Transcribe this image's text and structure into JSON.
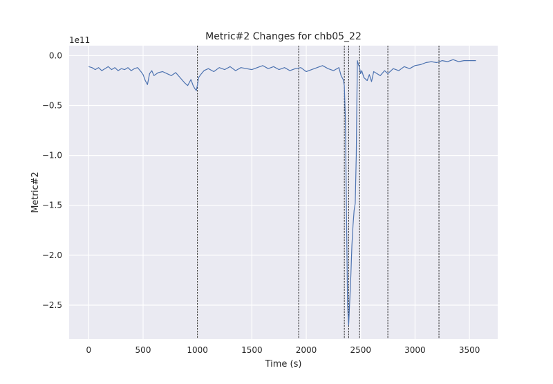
{
  "chart_data": {
    "type": "line",
    "title": "Metric#2 Changes for chb05_22",
    "xlabel": "Time (s)",
    "ylabel": "Metric#2",
    "y_offset_label": "1e11",
    "xlim": [
      -180,
      3760
    ],
    "ylim": [
      -2.84,
      0.1
    ],
    "y_scale_factor": "1e11",
    "grid": true,
    "legend": "none",
    "x_ticks": [
      0,
      500,
      1000,
      1500,
      2000,
      2500,
      3000,
      3500
    ],
    "x_tick_labels": [
      "0",
      "500",
      "1000",
      "1500",
      "2000",
      "2500",
      "3000",
      "3500"
    ],
    "y_ticks": [
      0.0,
      -0.5,
      -1.0,
      -1.5,
      -2.0,
      -2.5
    ],
    "y_tick_labels": [
      "0.0",
      "−0.5",
      "−1.0",
      "−1.5",
      "−2.0",
      "−2.5"
    ],
    "vlines": [
      1000,
      1930,
      2350,
      2390,
      2490,
      2750,
      3220
    ],
    "series": [
      {
        "color": "#4c72b0",
        "x": [
          0,
          30,
          60,
          90,
          120,
          150,
          180,
          210,
          240,
          270,
          300,
          330,
          360,
          390,
          420,
          450,
          480,
          500,
          520,
          540,
          560,
          580,
          600,
          640,
          680,
          720,
          760,
          800,
          840,
          880,
          910,
          940,
          960,
          975,
          990,
          1000,
          1010,
          1030,
          1060,
          1100,
          1150,
          1200,
          1250,
          1300,
          1350,
          1400,
          1450,
          1500,
          1550,
          1600,
          1650,
          1700,
          1750,
          1800,
          1850,
          1900,
          1950,
          2000,
          2050,
          2100,
          2150,
          2200,
          2250,
          2300,
          2320,
          2340,
          2350,
          2360,
          2370,
          2380,
          2390,
          2400,
          2410,
          2420,
          2430,
          2440,
          2450,
          2460,
          2465,
          2470,
          2480,
          2490,
          2500,
          2510,
          2530,
          2560,
          2580,
          2600,
          2620,
          2650,
          2680,
          2720,
          2750,
          2800,
          2850,
          2900,
          2950,
          3000,
          3050,
          3100,
          3150,
          3200,
          3250,
          3300,
          3350,
          3400,
          3450,
          3500,
          3560
        ],
        "values": [
          -0.11,
          -0.12,
          -0.14,
          -0.12,
          -0.15,
          -0.13,
          -0.11,
          -0.14,
          -0.12,
          -0.15,
          -0.13,
          -0.14,
          -0.12,
          -0.15,
          -0.13,
          -0.12,
          -0.16,
          -0.19,
          -0.25,
          -0.29,
          -0.18,
          -0.15,
          -0.2,
          -0.17,
          -0.16,
          -0.18,
          -0.2,
          -0.17,
          -0.22,
          -0.27,
          -0.3,
          -0.24,
          -0.3,
          -0.33,
          -0.35,
          -0.29,
          -0.22,
          -0.19,
          -0.15,
          -0.13,
          -0.16,
          -0.12,
          -0.14,
          -0.11,
          -0.15,
          -0.12,
          -0.13,
          -0.14,
          -0.12,
          -0.1,
          -0.13,
          -0.11,
          -0.14,
          -0.12,
          -0.15,
          -0.13,
          -0.12,
          -0.16,
          -0.14,
          -0.12,
          -0.1,
          -0.13,
          -0.15,
          -0.12,
          -0.2,
          -0.24,
          -0.3,
          -0.65,
          -1.6,
          -2.5,
          -2.7,
          -2.45,
          -2.2,
          -1.9,
          -1.7,
          -1.55,
          -1.48,
          -1.0,
          -0.5,
          -0.05,
          -0.09,
          -0.12,
          -0.18,
          -0.15,
          -0.22,
          -0.25,
          -0.19,
          -0.26,
          -0.16,
          -0.18,
          -0.2,
          -0.15,
          -0.18,
          -0.13,
          -0.15,
          -0.11,
          -0.13,
          -0.1,
          -0.09,
          -0.07,
          -0.06,
          -0.07,
          -0.05,
          -0.06,
          -0.04,
          -0.06,
          -0.05,
          -0.05,
          -0.05
        ]
      }
    ]
  }
}
